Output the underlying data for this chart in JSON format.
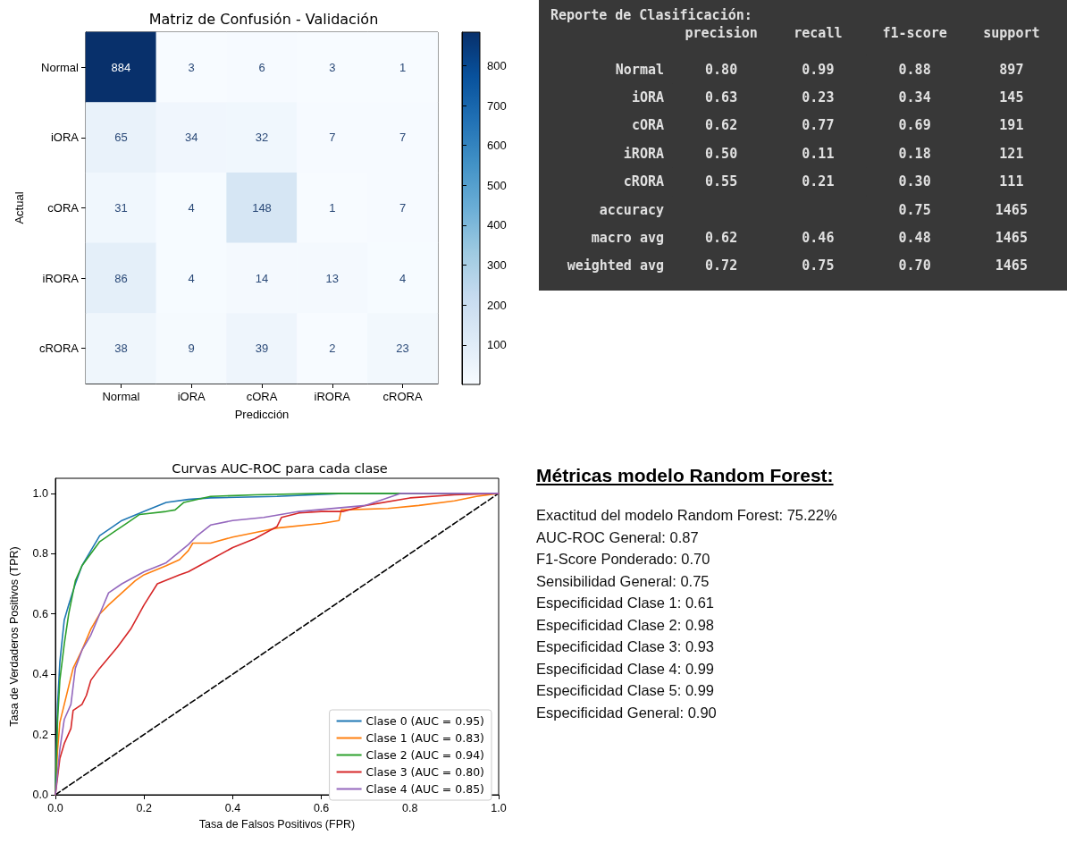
{
  "chart_data": [
    {
      "type": "heatmap",
      "title": "Matriz de Confusión - Validación",
      "xlabel": "Predicción",
      "ylabel": "Actual",
      "categories": [
        "Normal",
        "iORA",
        "cORA",
        "iRORA",
        "cRORA"
      ],
      "y_categories": [
        "Normal",
        "iORA",
        "cORA",
        "iRORA",
        "cRORA"
      ],
      "cells": [
        [
          884,
          3,
          6,
          3,
          1
        ],
        [
          65,
          34,
          32,
          7,
          7
        ],
        [
          31,
          4,
          148,
          1,
          7
        ],
        [
          86,
          4,
          14,
          13,
          4
        ],
        [
          38,
          9,
          39,
          2,
          23
        ]
      ],
      "clim": [
        1,
        884
      ],
      "cticks": [
        100,
        200,
        300,
        400,
        500,
        600,
        700,
        800
      ],
      "data_labels": true
    },
    {
      "type": "heatmap",
      "title": "Reporte de Clasificación:",
      "color": "#383838",
      "categories": [
        "precision",
        "recall",
        "f1-score",
        "support"
      ],
      "y_categories": [
        "Normal",
        "iORA",
        "cORA",
        "iRORA",
        "cRORA",
        "accuracy",
        "macro avg",
        "weighted avg"
      ],
      "cells": [
        [
          0.8,
          0.99,
          0.88,
          897
        ],
        [
          0.63,
          0.23,
          0.34,
          145
        ],
        [
          0.62,
          0.77,
          0.69,
          191
        ],
        [
          0.5,
          0.11,
          0.18,
          121
        ],
        [
          0.55,
          0.21,
          0.3,
          111
        ],
        [
          null,
          null,
          0.75,
          1465
        ],
        [
          0.62,
          0.46,
          0.48,
          1465
        ],
        [
          0.72,
          0.75,
          0.7,
          1465
        ]
      ],
      "cell_labels": [
        [
          "0.80",
          "0.99",
          "0.88",
          "897"
        ],
        [
          "0.63",
          "0.23",
          "0.34",
          "145"
        ],
        [
          "0.62",
          "0.77",
          "0.69",
          "191"
        ],
        [
          "0.50",
          "0.11",
          "0.18",
          "121"
        ],
        [
          "0.55",
          "0.21",
          "0.30",
          "111"
        ],
        [
          null,
          null,
          "0.75",
          "1465"
        ],
        [
          "0.62",
          "0.46",
          "0.48",
          "1465"
        ],
        [
          "0.72",
          "0.75",
          "0.70",
          "1465"
        ]
      ]
    },
    {
      "type": "line",
      "title": "Curvas AUC-ROC para cada clase",
      "xlabel": "Tasa de Falsos Positivos (FPR)",
      "ylabel": "Tasa de Verdaderos Positivos (TPR)",
      "xlim": [
        0,
        1
      ],
      "ylim": [
        0,
        1.05
      ],
      "xticks": [
        {
          "value": 0,
          "label": "0.0"
        },
        0.2,
        0.4,
        0.6,
        0.8,
        {
          "value": 1,
          "label": "1.0"
        }
      ],
      "yticks": [
        {
          "value": 0,
          "label": "0.0"
        },
        0.2,
        0.4,
        0.6,
        0.8,
        {
          "value": 1,
          "label": "1.0"
        }
      ],
      "legend": "bottom right",
      "marker": "none",
      "grid": false,
      "series": [
        {
          "name": "Clase 0 (AUC = 0.95)",
          "color": "#1f77b4",
          "x": [
            0,
            0.005,
            0.01,
            0.02,
            0.03,
            0.045,
            0.06,
            0.08,
            0.1,
            0.12,
            0.15,
            0.2,
            0.25,
            0.3,
            0.35,
            0.5,
            0.65,
            1
          ],
          "values": [
            0,
            0.3,
            0.44,
            0.58,
            0.63,
            0.7,
            0.76,
            0.81,
            0.86,
            0.88,
            0.91,
            0.94,
            0.97,
            0.98,
            0.985,
            0.99,
            1,
            1
          ]
        },
        {
          "name": "Clase 1 (AUC = 0.83)",
          "color": "#ff7f0e",
          "x": [
            0,
            0.005,
            0.01,
            0.02,
            0.03,
            0.04,
            0.06,
            0.08,
            0.1,
            0.12,
            0.15,
            0.18,
            0.2,
            0.25,
            0.28,
            0.3,
            0.31,
            0.35,
            0.4,
            0.45,
            0.5,
            0.6,
            0.64,
            0.645,
            0.75,
            0.82,
            0.9,
            0.95,
            1
          ],
          "values": [
            0,
            0.15,
            0.24,
            0.3,
            0.36,
            0.42,
            0.48,
            0.55,
            0.6,
            0.63,
            0.67,
            0.71,
            0.73,
            0.76,
            0.78,
            0.81,
            0.835,
            0.835,
            0.855,
            0.87,
            0.885,
            0.9,
            0.91,
            0.945,
            0.95,
            0.96,
            0.975,
            0.99,
            1
          ]
        },
        {
          "name": "Clase 2 (AUC = 0.94)",
          "color": "#2ca02c",
          "x": [
            0,
            0.005,
            0.01,
            0.02,
            0.03,
            0.045,
            0.06,
            0.08,
            0.1,
            0.13,
            0.16,
            0.19,
            0.25,
            0.27,
            0.29,
            0.35,
            0.45,
            0.6,
            1
          ],
          "values": [
            0,
            0.25,
            0.38,
            0.5,
            0.6,
            0.71,
            0.76,
            0.8,
            0.84,
            0.87,
            0.9,
            0.93,
            0.94,
            0.945,
            0.97,
            0.99,
            0.995,
            1,
            1
          ]
        },
        {
          "name": "Clase 3 (AUC = 0.80)",
          "color": "#d62728",
          "x": [
            0,
            0.01,
            0.02,
            0.035,
            0.04,
            0.06,
            0.07,
            0.08,
            0.1,
            0.14,
            0.17,
            0.2,
            0.23,
            0.28,
            0.3,
            0.35,
            0.4,
            0.45,
            0.5,
            0.51,
            0.55,
            0.6,
            0.65,
            0.7,
            0.8,
            0.9,
            1
          ],
          "values": [
            0,
            0.12,
            0.17,
            0.22,
            0.28,
            0.3,
            0.33,
            0.38,
            0.42,
            0.49,
            0.55,
            0.63,
            0.7,
            0.73,
            0.74,
            0.78,
            0.82,
            0.85,
            0.89,
            0.92,
            0.935,
            0.94,
            0.94,
            0.96,
            0.985,
            0.995,
            1
          ]
        },
        {
          "name": "Clase 4 (AUC = 0.85)",
          "color": "#9467bd",
          "x": [
            0,
            0.01,
            0.02,
            0.035,
            0.045,
            0.06,
            0.08,
            0.1,
            0.12,
            0.15,
            0.2,
            0.25,
            0.3,
            0.32,
            0.35,
            0.4,
            0.47,
            0.55,
            0.7,
            0.78,
            1
          ],
          "values": [
            0,
            0.15,
            0.25,
            0.3,
            0.42,
            0.48,
            0.53,
            0.6,
            0.67,
            0.7,
            0.74,
            0.77,
            0.83,
            0.86,
            0.895,
            0.91,
            0.92,
            0.94,
            0.96,
            1,
            1
          ]
        },
        {
          "color": "#000000",
          "line_style": "dashed",
          "x": [
            0,
            1
          ],
          "values": [
            0,
            1
          ]
        }
      ]
    },
    {
      "type": "other",
      "title": "Métricas modelo Random Forest:",
      "annotations": [
        "Exactitud del modelo Random Forest: 75.22%",
        "AUC-ROC General: 0.87",
        "F1-Score Ponderado: 0.70",
        "Sensibilidad General: 0.75",
        "Especificidad Clase 1: 0.61",
        "Especificidad Clase 2: 0.98",
        "Especificidad Clase 3: 0.93",
        "Especificidad Clase 4: 0.99",
        "Especificidad Clase 5: 0.99",
        "Especificidad General: 0.90"
      ]
    }
  ]
}
